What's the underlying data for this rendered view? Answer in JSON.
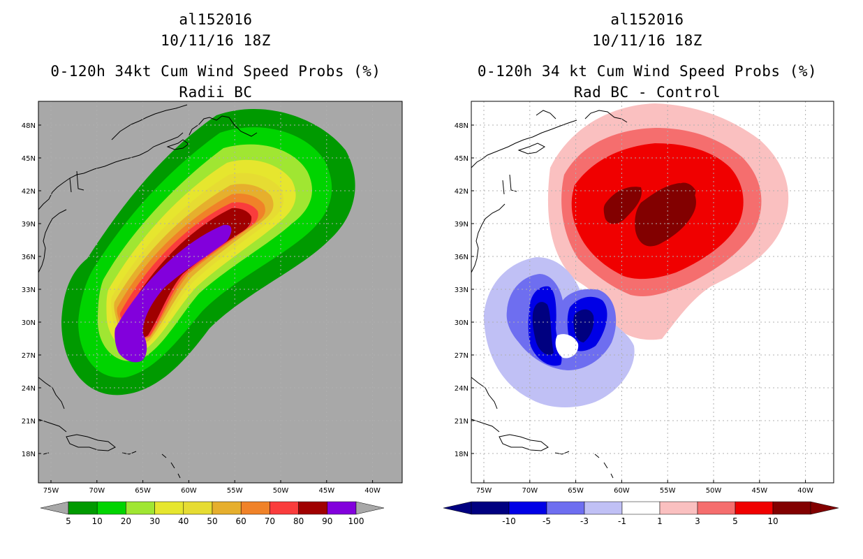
{
  "left": {
    "title1": "al152016",
    "title2": "10/11/16 18Z",
    "title3": "0-120h 34kt Cum Wind Speed Probs (%)",
    "title4": "Radii BC",
    "background_color": "#a8a8a8",
    "colorbar": {
      "colors": [
        "#009a00",
        "#00d400",
        "#a0e632",
        "#e6e62e",
        "#e6dc32",
        "#e6af2d",
        "#f08228",
        "#fa3c3c",
        "#a00000",
        "#8200dc"
      ],
      "labels": [
        "5",
        "10",
        "20",
        "30",
        "40",
        "50",
        "60",
        "70",
        "80",
        "90",
        "100"
      ]
    }
  },
  "right": {
    "title1": "al152016",
    "title2": "10/11/16 18Z",
    "title3": "0-120h 34 kt Cum Wind Speed Probs (%)",
    "title4": "Rad BC - Control",
    "background_color": "#ffffff",
    "colorbar": {
      "colors": [
        "#000080",
        "#0000e6",
        "#6e6ef0",
        "#c0c0f5",
        "#ffffff",
        "#fac0c0",
        "#f56e6e",
        "#f00000",
        "#820000"
      ],
      "labels": [
        "-10",
        "-5",
        "-3",
        "-1",
        "1",
        "3",
        "5",
        "10"
      ]
    }
  },
  "axes": {
    "lon_labels": [
      "75W",
      "70W",
      "65W",
      "60W",
      "55W",
      "50W",
      "45W",
      "40W"
    ],
    "lat_labels": [
      "48N",
      "45N",
      "42N",
      "39N",
      "36N",
      "33N",
      "30N",
      "27N",
      "24N",
      "21N",
      "18N"
    ]
  }
}
